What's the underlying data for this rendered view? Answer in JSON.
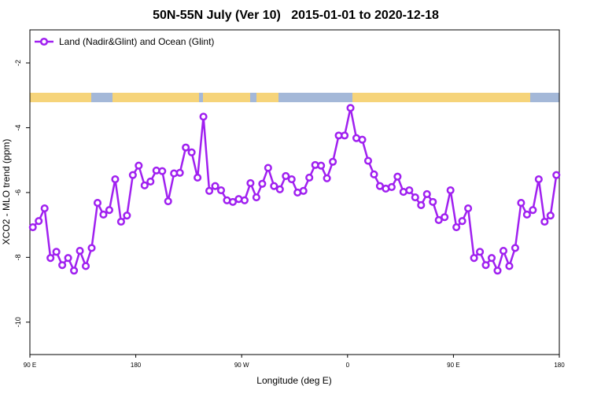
{
  "chart_data": {
    "type": "line",
    "title": "50N-55N July (Ver 10)   2015-01-01 to 2020-12-18",
    "x_label": "Longitude (deg E)",
    "y_label": "XCO2 - MLO trend (ppm)",
    "xlim": [
      90,
      540
    ],
    "xticks": [
      {
        "value": 90,
        "label": "90 E"
      },
      180,
      {
        "value": 270,
        "label": "90 W"
      },
      {
        "value": 360,
        "label": "0"
      },
      {
        "value": 450,
        "label": "90 E"
      },
      {
        "value": 540,
        "label": "180"
      }
    ],
    "ylim": [
      -11,
      -0.98
    ],
    "yticks": [
      -10,
      -8,
      -6,
      -4,
      -2
    ],
    "legend": "top-left",
    "x": [
      92.5,
      97.5,
      102.5,
      107.5,
      112.5,
      117.5,
      122.5,
      127.5,
      132.5,
      137.5,
      142.5,
      147.5,
      152.5,
      157.5,
      162.5,
      167.5,
      172.5,
      177.5,
      182.5,
      187.5,
      192.5,
      197.5,
      202.5,
      207.5,
      212.5,
      217.5,
      222.5,
      227.5,
      232.5,
      237.5,
      242.5,
      247.5,
      252.5,
      257.5,
      262.5,
      267.5,
      272.5,
      277.5,
      282.5,
      287.5,
      292.5,
      297.5,
      302.5,
      307.5,
      312.5,
      317.5,
      322.5,
      327.5,
      332.5,
      337.5,
      342.5,
      347.5,
      352.5,
      357.5,
      362.5,
      367.5,
      372.5,
      377.5,
      382.5,
      387.5,
      392.5,
      397.5,
      402.5,
      407.5,
      412.5,
      417.5,
      422.5,
      427.5,
      432.5,
      437.5,
      442.5,
      447.5,
      452.5,
      457.5,
      462.5,
      467.5,
      472.5,
      477.5,
      482.5,
      487.5,
      492.5,
      497.5,
      502.5,
      507.5,
      512.5,
      517.5,
      522.5,
      527.5,
      532.5,
      537.5
    ],
    "series": [
      {
        "name": "Land (Nadir&Glint) and Ocean (Glint)",
        "color": "#a020f0",
        "values": [
          -7.07,
          -6.88,
          -6.49,
          -8.02,
          -7.83,
          -8.24,
          -8.02,
          -8.41,
          -7.8,
          -8.27,
          -7.71,
          -6.32,
          -6.68,
          -6.54,
          -5.59,
          -6.9,
          -6.71,
          -5.46,
          -5.17,
          -5.78,
          -5.66,
          -5.32,
          -5.34,
          -6.27,
          -5.41,
          -5.39,
          -4.61,
          -4.76,
          -5.54,
          -3.66,
          -5.95,
          -5.8,
          -5.93,
          -6.24,
          -6.29,
          -6.2,
          -6.24,
          -5.71,
          -6.15,
          -5.73,
          -5.24,
          -5.8,
          -5.9,
          -5.49,
          -5.59,
          -6.0,
          -5.95,
          -5.54,
          -5.15,
          -5.17,
          -5.56,
          -5.05,
          -4.24,
          -4.24,
          -3.39,
          -4.32,
          -4.37,
          -5.02,
          -5.44,
          -5.8,
          -5.88,
          -5.83,
          -5.51,
          -5.98,
          -5.93,
          -6.15,
          -6.39,
          -6.05,
          -6.29,
          -6.85,
          -6.76,
          -5.93,
          -7.07,
          -6.88,
          -6.49,
          -8.02,
          -7.83,
          -8.24,
          -8.02,
          -8.41,
          -7.8,
          -8.27,
          -7.71,
          -6.32,
          -6.68,
          -6.54,
          -5.59,
          -6.9,
          -6.71,
          -5.46
        ]
      }
    ]
  }
}
